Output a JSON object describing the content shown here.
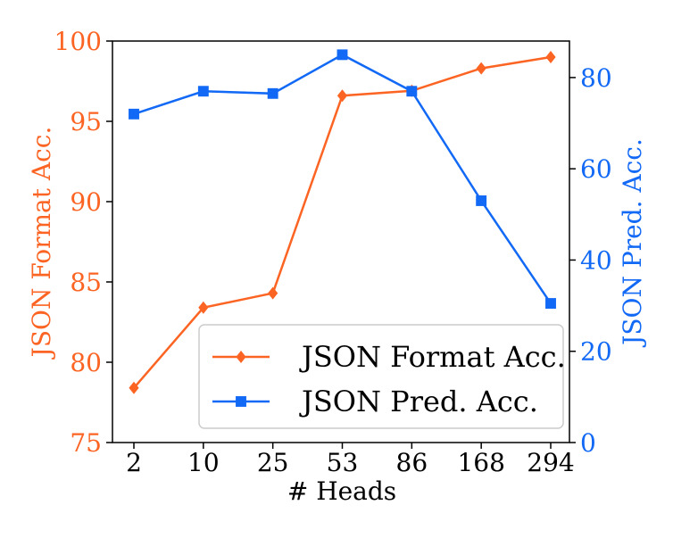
{
  "chart_data": {
    "type": "line",
    "categories": [
      "2",
      "10",
      "25",
      "53",
      "86",
      "168",
      "294"
    ],
    "xlabel": "# Heads",
    "y_left": {
      "label": "JSON Format Acc.",
      "lim": [
        75,
        100
      ],
      "ticks": [
        75,
        80,
        85,
        90,
        95,
        100
      ],
      "color": "#fc6423"
    },
    "y_right": {
      "label": "JSON Pred. Acc.",
      "lim": [
        0,
        88
      ],
      "ticks": [
        0,
        20,
        40,
        60,
        80
      ],
      "color": "#1269f5"
    },
    "series": [
      {
        "name": "JSON Format Acc.",
        "axis": "left",
        "marker": "diamond",
        "color": "#fc6423",
        "values": [
          78.4,
          83.4,
          84.3,
          96.6,
          96.9,
          98.3,
          99.0
        ]
      },
      {
        "name": "JSON Pred. Acc.",
        "axis": "right",
        "marker": "square",
        "color": "#1269f5",
        "values": [
          72.0,
          77.0,
          76.5,
          85.0,
          77.0,
          53.0,
          30.5
        ]
      }
    ],
    "legend": "bottom-right",
    "grid": false
  }
}
